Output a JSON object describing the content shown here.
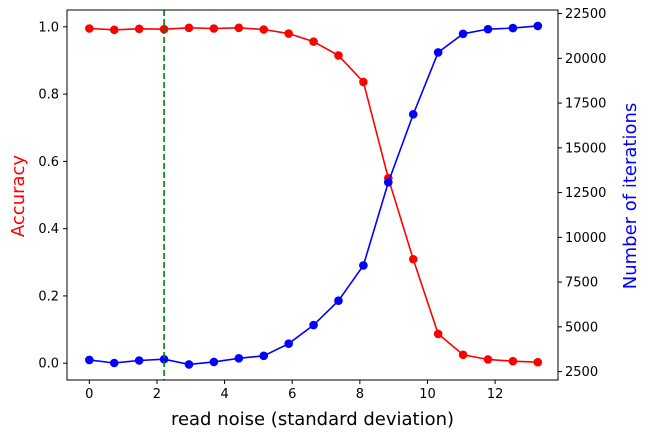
{
  "chart_data": {
    "type": "line",
    "xlabel": "read noise (standard deviation)",
    "ylabel_left": "Accuracy",
    "ylabel_right": "Number of iterations",
    "xlim": [
      -0.66,
      13.86
    ],
    "ylim_left": [
      -0.05,
      1.05
    ],
    "ylim_right": [
      2030,
      22700
    ],
    "x_ticks": [
      0,
      2,
      4,
      6,
      8,
      10,
      12
    ],
    "y_ticks_left": [
      0.0,
      0.2,
      0.4,
      0.6,
      0.8,
      1.0
    ],
    "y_ticks_right": [
      2500,
      5000,
      7500,
      10000,
      12500,
      15000,
      17500,
      20000,
      22500
    ],
    "x": [
      0,
      0.737,
      1.474,
      2.211,
      2.947,
      3.684,
      4.421,
      5.158,
      5.895,
      6.632,
      7.368,
      8.105,
      8.842,
      9.579,
      10.316,
      11.053,
      11.789,
      12.526,
      13.263
    ],
    "series": [
      {
        "axis": "left",
        "color": "#ff0000",
        "values": [
          0.995,
          0.991,
          0.994,
          0.993,
          0.997,
          0.995,
          0.997,
          0.992,
          0.98,
          0.956,
          0.915,
          0.836,
          0.55,
          0.309,
          0.087,
          0.025,
          0.011,
          0.006,
          0.003
        ]
      },
      {
        "axis": "right",
        "color": "#0000ff",
        "values": [
          3150,
          2980,
          3120,
          3190,
          2900,
          3040,
          3240,
          3380,
          4060,
          5100,
          6460,
          8430,
          13070,
          16870,
          20330,
          21370,
          21630,
          21690,
          21810
        ]
      }
    ],
    "vline": {
      "x": 2.211,
      "color": "#008000",
      "style": "dashed"
    },
    "grid": false,
    "legend": "none"
  }
}
